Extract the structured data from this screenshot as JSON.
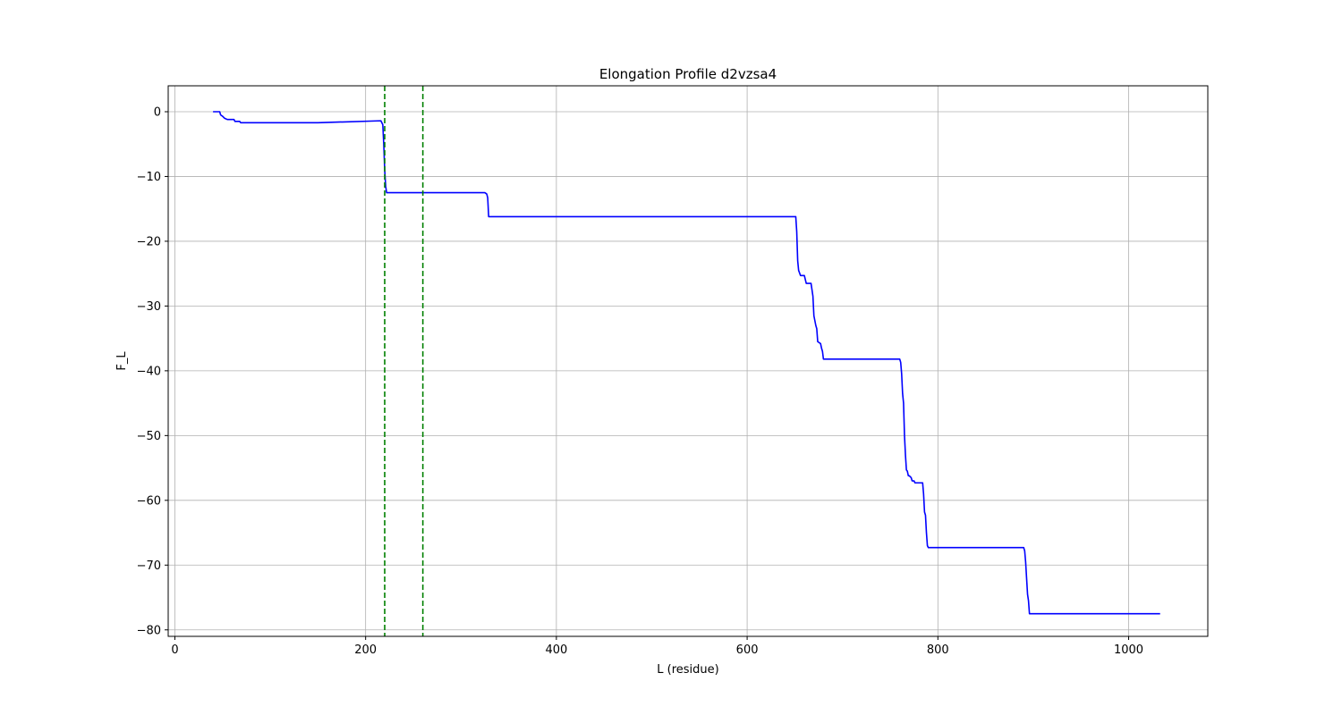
{
  "chart_data": {
    "type": "line",
    "title": "Elongation Profile d2vzsa4",
    "xlabel": "L (residue)",
    "ylabel": "F_L",
    "xlim": [
      -7,
      1083
    ],
    "ylim": [
      -81,
      4
    ],
    "grid": true,
    "x_ticks": [
      0,
      200,
      400,
      600,
      800,
      1000
    ],
    "y_ticks": [
      0,
      -10,
      -20,
      -30,
      -40,
      -50,
      -60,
      -70,
      -80
    ],
    "x_tick_labels": [
      "0",
      "200",
      "400",
      "600",
      "800",
      "1000"
    ],
    "y_tick_labels": [
      "0",
      "−10",
      "−20",
      "−30",
      "−40",
      "−50",
      "−60",
      "−70",
      "−80"
    ],
    "series": [
      {
        "color": "#0000ff",
        "x": [
          40,
          47,
          48,
          50,
          52,
          55,
          58,
          62,
          63,
          66,
          68,
          69,
          70,
          72,
          150,
          216,
          218,
          219,
          220,
          221,
          222,
          223,
          250,
          325,
          327,
          328,
          329,
          330,
          400,
          500,
          600,
          650,
          651,
          652,
          653,
          654,
          656,
          658,
          660,
          662,
          665,
          667,
          668,
          669,
          670,
          672,
          673,
          674,
          677,
          678,
          679,
          680,
          681,
          700,
          750,
          760,
          761,
          762,
          763,
          764,
          765,
          766,
          767,
          768,
          769,
          770,
          772,
          773,
          775,
          776,
          778,
          780,
          784,
          785,
          786,
          787,
          788,
          789,
          790,
          792,
          850,
          890,
          891,
          892,
          893,
          894,
          895,
          896,
          897,
          900,
          1000,
          1033
        ],
        "y": [
          0,
          0,
          -0.5,
          -0.7,
          -1.0,
          -1.2,
          -1.2,
          -1.2,
          -1.5,
          -1.5,
          -1.5,
          -1.7,
          -1.7,
          -1.7,
          -1.7,
          -1.4,
          -2.0,
          -5.0,
          -9.0,
          -11.5,
          -12.5,
          -12.5,
          -12.5,
          -12.5,
          -12.7,
          -13.3,
          -16.2,
          -16.2,
          -16.2,
          -16.2,
          -16.2,
          -16.2,
          -16.2,
          -18.5,
          -23.0,
          -24.5,
          -25.3,
          -25.3,
          -25.3,
          -26.5,
          -26.5,
          -26.5,
          -27.5,
          -28.5,
          -31.5,
          -33.0,
          -33.5,
          -35.5,
          -35.8,
          -36.5,
          -37.0,
          -38.2,
          -38.2,
          -38.2,
          -38.2,
          -38.2,
          -38.7,
          -40.5,
          -43.5,
          -45.0,
          -50.0,
          -53.0,
          -55.3,
          -55.5,
          -56.2,
          -56.2,
          -56.5,
          -57.0,
          -57.0,
          -57.3,
          -57.3,
          -57.3,
          -57.3,
          -59.0,
          -61.8,
          -62.3,
          -65.0,
          -67.0,
          -67.3,
          -67.3,
          -67.3,
          -67.3,
          -67.8,
          -69.5,
          -72.0,
          -74.5,
          -75.5,
          -77.5,
          -77.5,
          -77.5,
          -77.5,
          -77.5
        ]
      }
    ],
    "vlines": [
      {
        "x": 220,
        "color": "#008000",
        "style": "dashed"
      },
      {
        "x": 260,
        "color": "#008000",
        "style": "dashed"
      }
    ]
  }
}
